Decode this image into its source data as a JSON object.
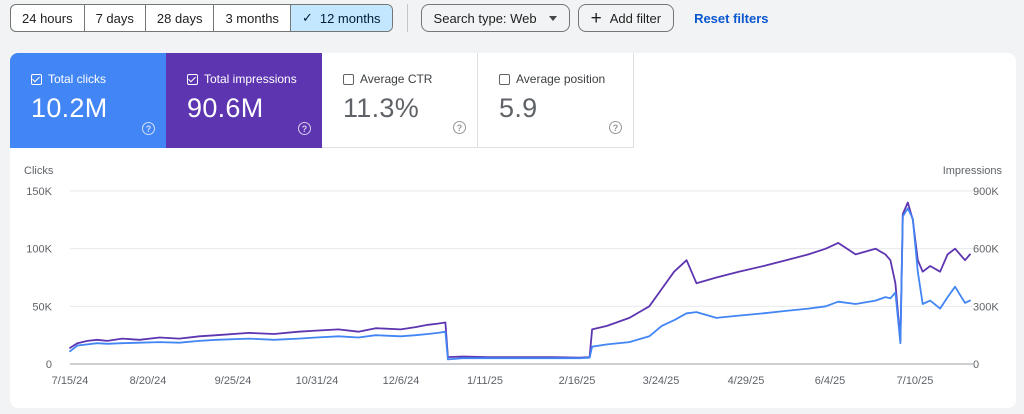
{
  "toolbar": {
    "date_ranges": [
      {
        "label": "24 hours",
        "active": false
      },
      {
        "label": "7 days",
        "active": false
      },
      {
        "label": "28 days",
        "active": false
      },
      {
        "label": "3 months",
        "active": false
      },
      {
        "label": "12 months",
        "active": true
      }
    ],
    "search_type_label": "Search type: Web",
    "add_filter_label": "Add filter",
    "reset_filters_label": "Reset filters"
  },
  "metrics": {
    "clicks": {
      "label": "Total clicks",
      "value": "10.2M",
      "checked": true,
      "color": "#4285f4"
    },
    "impressions": {
      "label": "Total impressions",
      "value": "90.6M",
      "checked": true,
      "color": "#5e35b1"
    },
    "ctr": {
      "label": "Average CTR",
      "value": "11.3%",
      "checked": false
    },
    "position": {
      "label": "Average position",
      "value": "5.9",
      "checked": false
    }
  },
  "chart_data": {
    "type": "line",
    "left_axis_title": "Clicks",
    "right_axis_title": "Impressions",
    "left_ticks": [
      "0",
      "50K",
      "100K",
      "150K"
    ],
    "right_ticks": [
      "0",
      "300K",
      "600K",
      "900K"
    ],
    "ylim_left": [
      0,
      150000
    ],
    "ylim_right": [
      0,
      900000
    ],
    "grid": true,
    "x_tick_labels": [
      "7/15/24",
      "8/20/24",
      "9/25/24",
      "10/31/24",
      "12/6/24",
      "1/11/25",
      "2/16/25",
      "3/24/25",
      "4/29/25",
      "6/4/25",
      "7/10/25"
    ],
    "x_start": "2024-07-15",
    "x_end": "2025-07-10",
    "series": [
      {
        "name": "Clicks",
        "axis": "left",
        "color": "#4285f4",
        "x": [
          "2024-07-15",
          "2024-07-18",
          "2024-07-22",
          "2024-07-26",
          "2024-07-30",
          "2024-08-05",
          "2024-08-12",
          "2024-08-20",
          "2024-08-28",
          "2024-09-05",
          "2024-09-12",
          "2024-09-25",
          "2024-10-05",
          "2024-10-15",
          "2024-10-22",
          "2024-10-31",
          "2024-11-08",
          "2024-11-15",
          "2024-11-25",
          "2024-12-01",
          "2024-12-06",
          "2024-12-10",
          "2024-12-13",
          "2024-12-14",
          "2024-12-20",
          "2024-12-30",
          "2025-01-11",
          "2025-01-25",
          "2025-02-05",
          "2025-02-09",
          "2025-02-10",
          "2025-02-16",
          "2025-02-25",
          "2025-03-05",
          "2025-03-10",
          "2025-03-15",
          "2025-03-20",
          "2025-03-24",
          "2025-04-01",
          "2025-04-10",
          "2025-04-20",
          "2025-04-29",
          "2025-05-08",
          "2025-05-15",
          "2025-05-20",
          "2025-05-27",
          "2025-06-04",
          "2025-06-08",
          "2025-06-10",
          "2025-06-12",
          "2025-06-14",
          "2025-06-15",
          "2025-06-17",
          "2025-06-19",
          "2025-06-21",
          "2025-06-23",
          "2025-06-26",
          "2025-06-30",
          "2025-07-03",
          "2025-07-06",
          "2025-07-08",
          "2025-07-10",
          "2025-07-12"
        ],
        "y": [
          11000,
          16000,
          17000,
          18000,
          17500,
          18000,
          18500,
          19000,
          18500,
          20000,
          21000,
          22000,
          21000,
          22000,
          23000,
          24000,
          23000,
          25000,
          24000,
          25000,
          26000,
          27000,
          28000,
          4000,
          5000,
          5000,
          5000,
          5000,
          5000,
          5500,
          15000,
          17000,
          19000,
          24000,
          33000,
          38000,
          44000,
          45000,
          40000,
          42000,
          44000,
          46000,
          48000,
          50000,
          54000,
          52000,
          55000,
          58000,
          57000,
          62000,
          18000,
          128000,
          135000,
          126000,
          80000,
          52000,
          55000,
          48000,
          58000,
          67000,
          60000,
          53000,
          55000
        ]
      },
      {
        "name": "Impressions",
        "axis": "right",
        "color": "#5e35b1",
        "x": [
          "2024-07-15",
          "2024-07-18",
          "2024-07-22",
          "2024-07-26",
          "2024-07-30",
          "2024-08-05",
          "2024-08-12",
          "2024-08-20",
          "2024-08-28",
          "2024-09-05",
          "2024-09-12",
          "2024-09-25",
          "2024-10-05",
          "2024-10-15",
          "2024-10-22",
          "2024-10-31",
          "2024-11-08",
          "2024-11-15",
          "2024-11-25",
          "2024-12-01",
          "2024-12-06",
          "2024-12-10",
          "2024-12-13",
          "2024-12-14",
          "2024-12-20",
          "2024-12-30",
          "2025-01-11",
          "2025-01-25",
          "2025-02-05",
          "2025-02-09",
          "2025-02-10",
          "2025-02-16",
          "2025-02-25",
          "2025-03-05",
          "2025-03-10",
          "2025-03-15",
          "2025-03-20",
          "2025-03-24",
          "2025-04-01",
          "2025-04-10",
          "2025-04-20",
          "2025-04-29",
          "2025-05-08",
          "2025-05-15",
          "2025-05-20",
          "2025-05-27",
          "2025-06-04",
          "2025-06-08",
          "2025-06-10",
          "2025-06-12",
          "2025-06-14",
          "2025-06-15",
          "2025-06-17",
          "2025-06-19",
          "2025-06-21",
          "2025-06-23",
          "2025-06-26",
          "2025-06-30",
          "2025-07-03",
          "2025-07-06",
          "2025-07-08",
          "2025-07-10",
          "2025-07-12"
        ],
        "y": [
          84000,
          108000,
          120000,
          126000,
          120000,
          132000,
          126000,
          138000,
          132000,
          144000,
          150000,
          162000,
          156000,
          168000,
          174000,
          180000,
          168000,
          186000,
          180000,
          192000,
          204000,
          210000,
          216000,
          36000,
          39000,
          36000,
          36000,
          36000,
          33000,
          36000,
          180000,
          198000,
          240000,
          300000,
          390000,
          480000,
          540000,
          420000,
          450000,
          480000,
          510000,
          540000,
          570000,
          600000,
          630000,
          570000,
          600000,
          570000,
          540000,
          420000,
          120000,
          780000,
          840000,
          750000,
          540000,
          480000,
          510000,
          480000,
          570000,
          600000,
          570000,
          540000,
          570000
        ]
      }
    ]
  }
}
